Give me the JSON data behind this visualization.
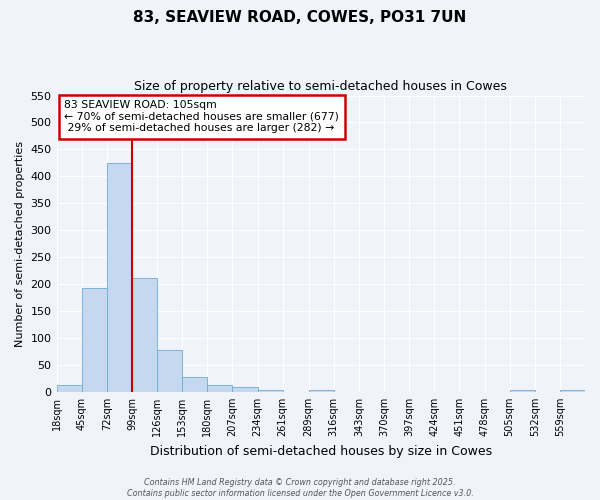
{
  "title": "83, SEAVIEW ROAD, COWES, PO31 7UN",
  "subtitle": "Size of property relative to semi-detached houses in Cowes",
  "xlabel": "Distribution of semi-detached houses by size in Cowes",
  "ylabel": "Number of semi-detached properties",
  "property_label": "83 SEAVIEW ROAD: 105sqm",
  "pct_smaller": 70,
  "count_smaller": 677,
  "pct_larger": 29,
  "count_larger": 282,
  "bin_labels": [
    "18sqm",
    "45sqm",
    "72sqm",
    "99sqm",
    "126sqm",
    "153sqm",
    "180sqm",
    "207sqm",
    "234sqm",
    "261sqm",
    "289sqm",
    "316sqm",
    "343sqm",
    "370sqm",
    "397sqm",
    "424sqm",
    "451sqm",
    "478sqm",
    "505sqm",
    "532sqm",
    "559sqm"
  ],
  "bin_left_edges": [
    18,
    45,
    72,
    99,
    126,
    153,
    180,
    207,
    234,
    261,
    289,
    316,
    343,
    370,
    397,
    424,
    451,
    478,
    505,
    532,
    559
  ],
  "bar_heights": [
    13,
    193,
    425,
    211,
    77,
    28,
    13,
    9,
    4,
    0,
    4,
    0,
    0,
    0,
    0,
    0,
    0,
    0,
    4,
    0,
    4
  ],
  "bar_color": "#c5d8ef",
  "bar_edge_color": "#6aaed6",
  "red_line_x": 99,
  "ylim": [
    0,
    550
  ],
  "yticks": [
    0,
    50,
    100,
    150,
    200,
    250,
    300,
    350,
    400,
    450,
    500,
    550
  ],
  "fig_background_color": "#f0f4fa",
  "plot_background_color": "#f0f4fa",
  "grid_color": "#ffffff",
  "annotation_box_edge_color": "#cc0000",
  "footer_line1": "Contains HM Land Registry data © Crown copyright and database right 2025.",
  "footer_line2": "Contains public sector information licensed under the Open Government Licence v3.0."
}
